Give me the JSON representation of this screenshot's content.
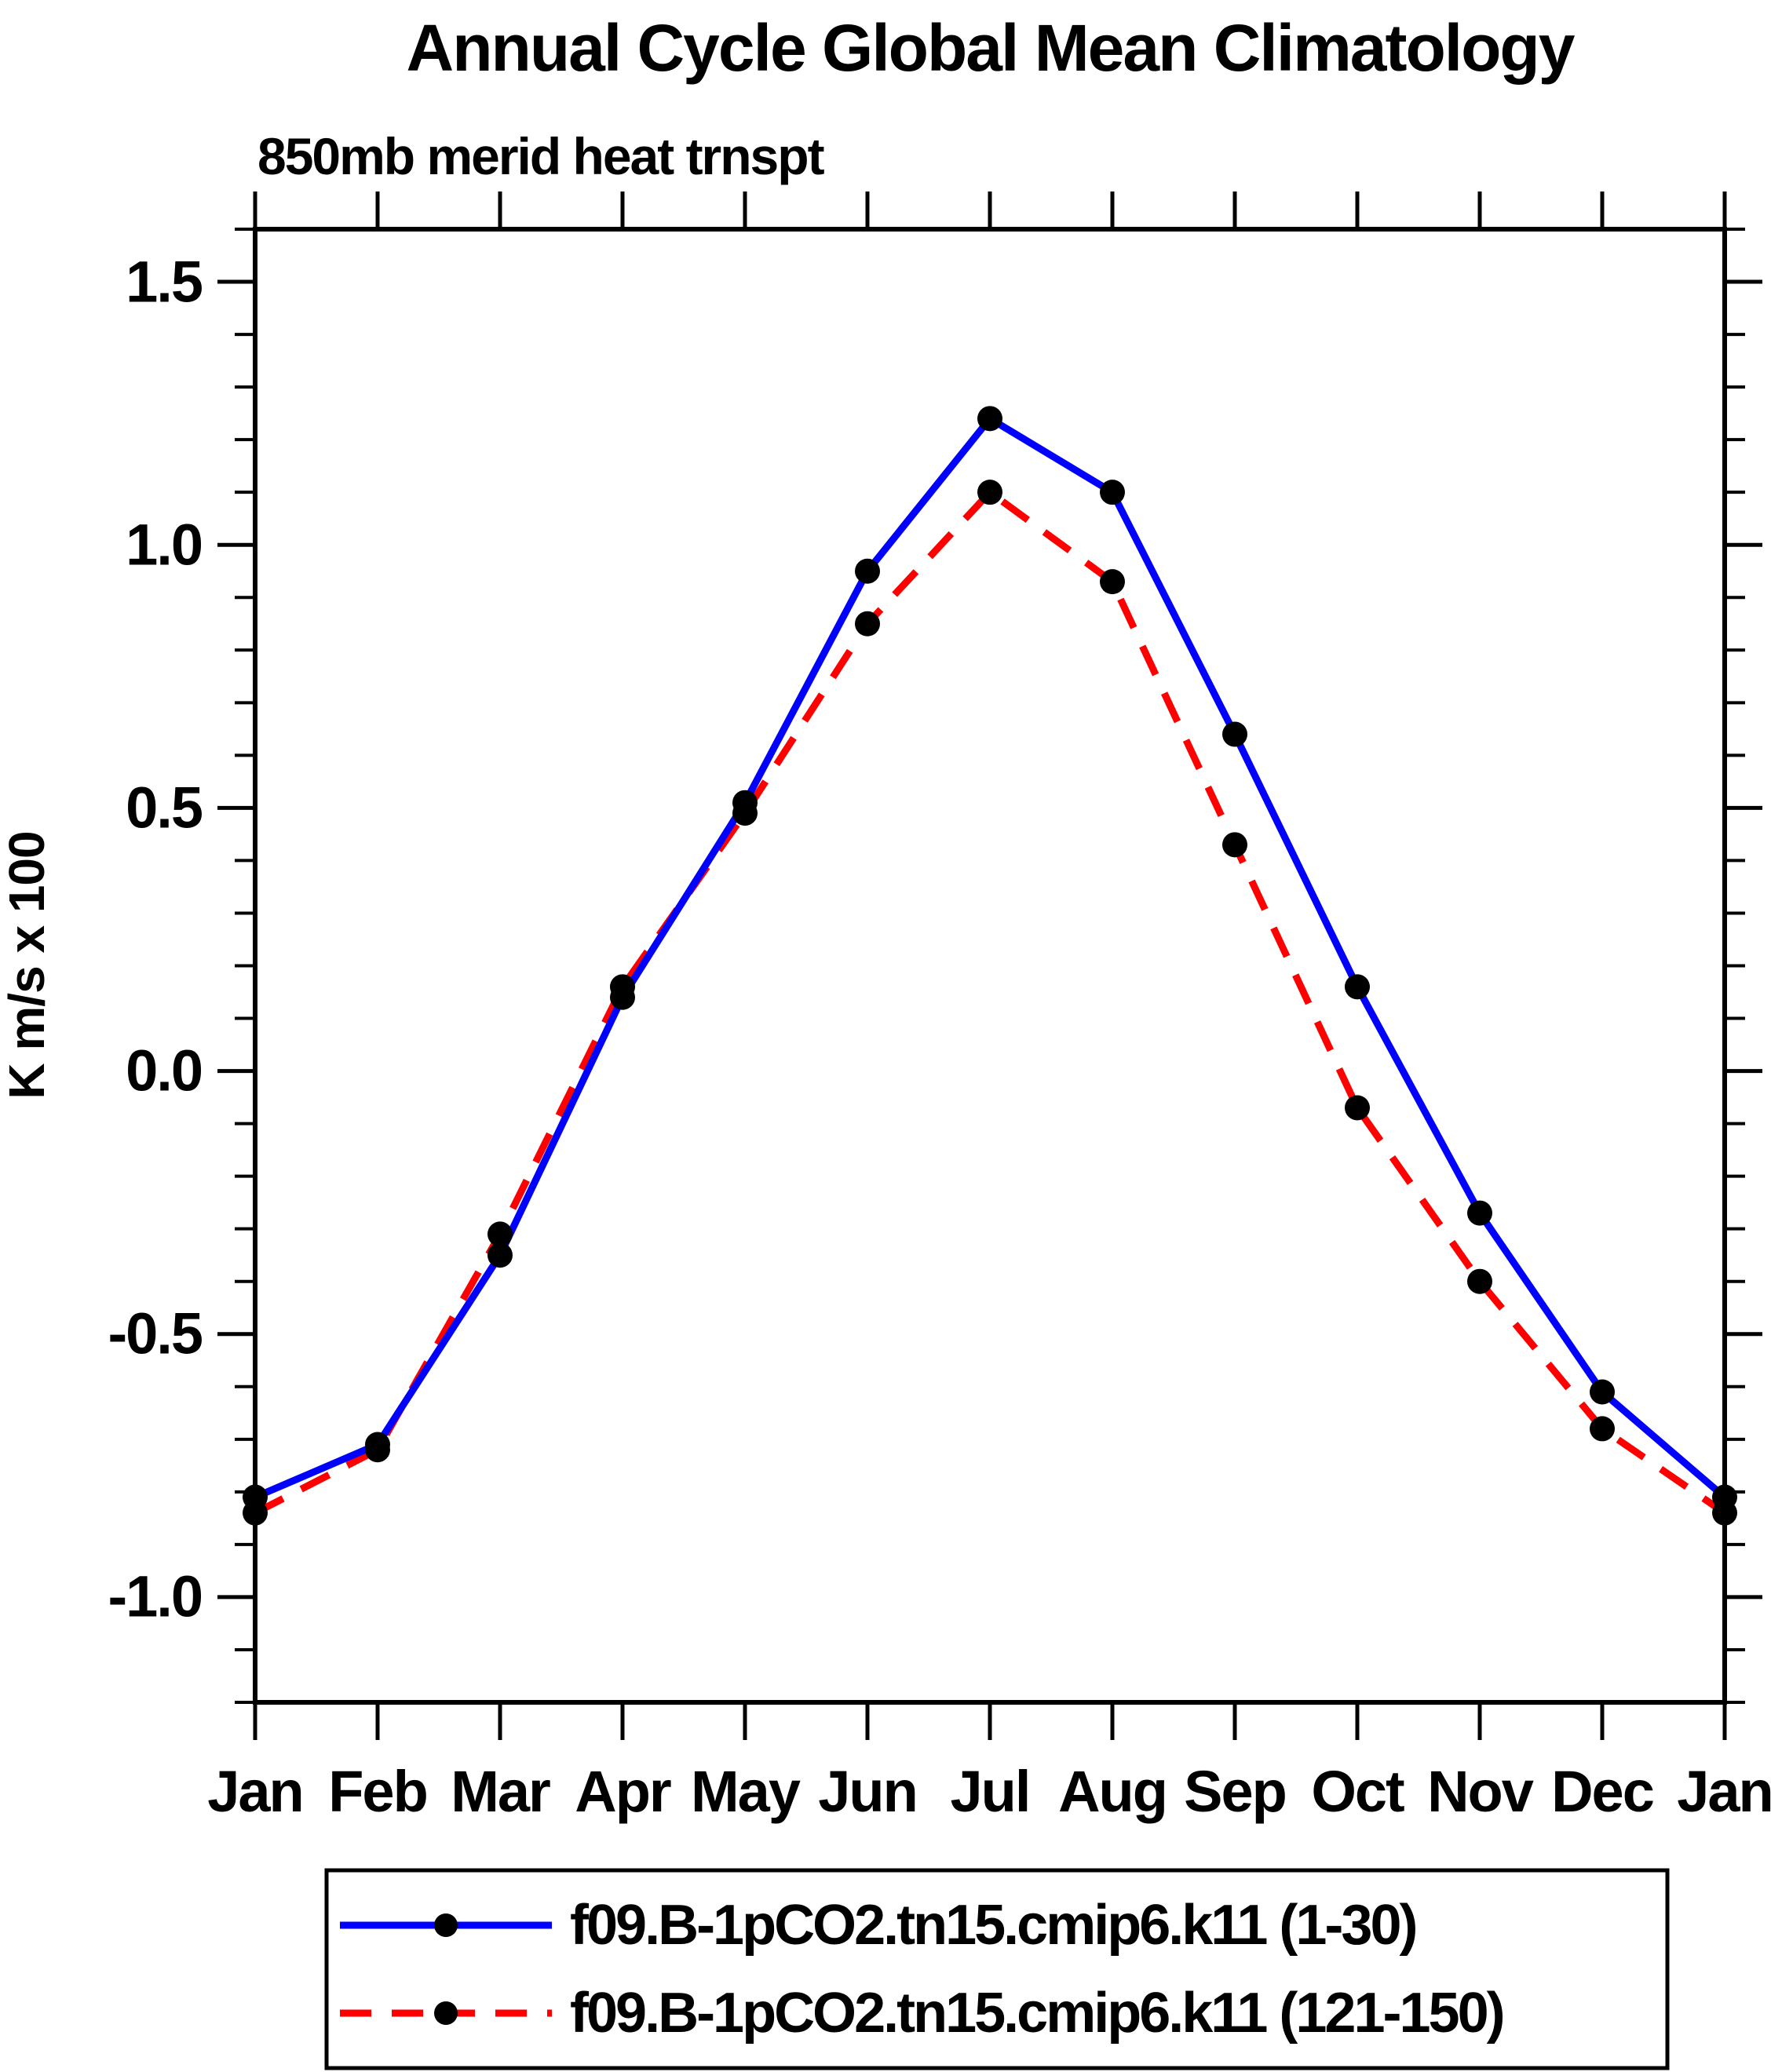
{
  "page": {
    "background": "#ffffff",
    "axis_color": "#000000"
  },
  "chart_data": {
    "type": "line",
    "title": "Annual Cycle Global Mean Climatology",
    "subtitle": "850mb merid heat trnspt",
    "ylabel": "K m/s x 100",
    "xlabel": "",
    "categories": [
      "Jan",
      "Feb",
      "Mar",
      "Apr",
      "May",
      "Jun",
      "Jul",
      "Aug",
      "Sep",
      "Oct",
      "Nov",
      "Dec",
      "Jan"
    ],
    "y_tick_labels": [
      "1.5",
      "1.0",
      "0.5",
      "0.0",
      "-0.5",
      "-1.0"
    ],
    "y_tick_values": [
      1.5,
      1.0,
      0.5,
      0.0,
      -0.5,
      -1.0
    ],
    "ylim": [
      -1.2,
      1.6
    ],
    "minor_tick_step": 0.1,
    "grid": false,
    "legend_position": "bottom",
    "marker": "filled-circle",
    "marker_color": "#000000",
    "series": [
      {
        "name": "f09.B-1pCO2.tn15.cmip6.k11 (1-30)",
        "color": "#0000ff",
        "line_style": "solid",
        "values": [
          -0.81,
          -0.71,
          -0.35,
          0.14,
          0.51,
          0.95,
          1.24,
          1.1,
          0.64,
          0.16,
          -0.27,
          -0.61,
          -0.81
        ]
      },
      {
        "name": "f09.B-1pCO2.tn15.cmip6.k11 (121-150)",
        "color": "#ff0000",
        "line_style": "dashed",
        "values": [
          -0.84,
          -0.72,
          -0.31,
          0.16,
          0.49,
          0.85,
          1.1,
          0.93,
          0.43,
          -0.07,
          -0.4,
          -0.68,
          -0.84
        ]
      }
    ]
  }
}
